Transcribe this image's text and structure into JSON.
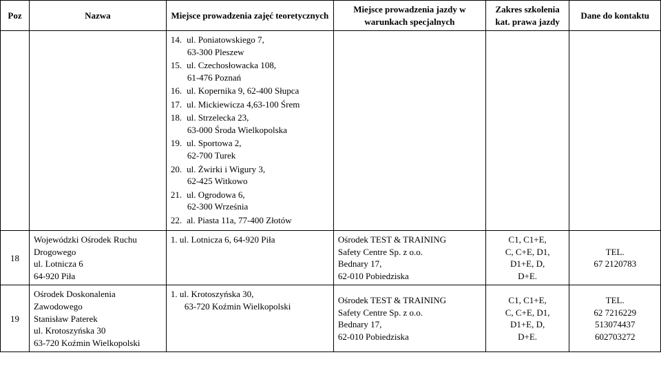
{
  "headers": {
    "poz": "Poz",
    "nazwa": "Nazwa",
    "teoret": "Miejsce prowadzenia zajęć teoretycznych",
    "spec": "Miejsce prowadzenia jazdy w warunkach specjalnych",
    "kat": "Zakres szkolenia kat. prawa jazdy",
    "dane": "Dane do kontaktu"
  },
  "addresses": [
    {
      "n": "14.",
      "l1": "ul. Poniatowskiego 7,",
      "l2": "63-300 Pleszew"
    },
    {
      "n": "15.",
      "l1": "ul. Czechosłowacka 108,",
      "l2": "61-476 Poznań"
    },
    {
      "n": "16.",
      "l1": "ul. Kopernika 9, 62-400 Słupca",
      "l2": ""
    },
    {
      "n": "17.",
      "l1": "ul. Mickiewicza 4,63-100 Śrem",
      "l2": ""
    },
    {
      "n": "18.",
      "l1": "ul. Strzelecka 23,",
      "l2": "63-000 Środa Wielkopolska"
    },
    {
      "n": "19.",
      "l1": "ul. Sportowa 2,",
      "l2": "62-700 Turek"
    },
    {
      "n": "20.",
      "l1": "ul. Żwirki i Wigury 3,",
      "l2": "62-425 Witkowo"
    },
    {
      "n": "21.",
      "l1": "ul. Ogrodowa 6,",
      "l2": "62-300 Września"
    },
    {
      "n": "22.",
      "l1": "al. Piasta 11a, 77-400 Złotów",
      "l2": ""
    }
  ],
  "row18": {
    "poz": "18",
    "nazwa_l1": "Wojewódzki Ośrodek Ruchu",
    "nazwa_l2": "Drogowego",
    "nazwa_l3": "ul. Lotnicza 6",
    "nazwa_l4": "64-920 Piła",
    "teor_n": "1.",
    "teor_l1": "ul. Lotnicza 6, 64-920 Piła",
    "spec_l1": "Ośrodek TEST & TRAINING",
    "spec_l2": "Safety Centre Sp. z o.o.",
    "spec_l3": "Bednary 17,",
    "spec_l4": "62-010 Pobiedziska",
    "kat_l1": "C1, C1+E,",
    "kat_l2": "C, C+E, D1,",
    "kat_l3": "D1+E, D,",
    "kat_l4": "D+E.",
    "dane_l1": "TEL.",
    "dane_l2": "67 2120783"
  },
  "row19": {
    "poz": "19",
    "nazwa_l1": "Ośrodek Doskonalenia",
    "nazwa_l2": "Zawodowego",
    "nazwa_l3": "Stanisław Paterek",
    "nazwa_l4": "ul. Krotoszyńska 30",
    "nazwa_l5": "63-720 Koźmin Wielkopolski",
    "teor_n": "1.",
    "teor_l1": "ul. Krotoszyńska 30,",
    "teor_l2": "63-720 Koźmin Wielkopolski",
    "spec_l1": "Ośrodek TEST & TRAINING",
    "spec_l2": "Safety Centre Sp. z o.o.",
    "spec_l3": "Bednary 17,",
    "spec_l4": "62-010 Pobiedziska",
    "kat_l1": "C1, C1+E,",
    "kat_l2": "C, C+E, D1,",
    "kat_l3": "D1+E, D,",
    "kat_l4": "D+E.",
    "dane_l1": "TEL.",
    "dane_l2": "62 7216229",
    "dane_l3": "513074437",
    "dane_l4": "602703272"
  }
}
